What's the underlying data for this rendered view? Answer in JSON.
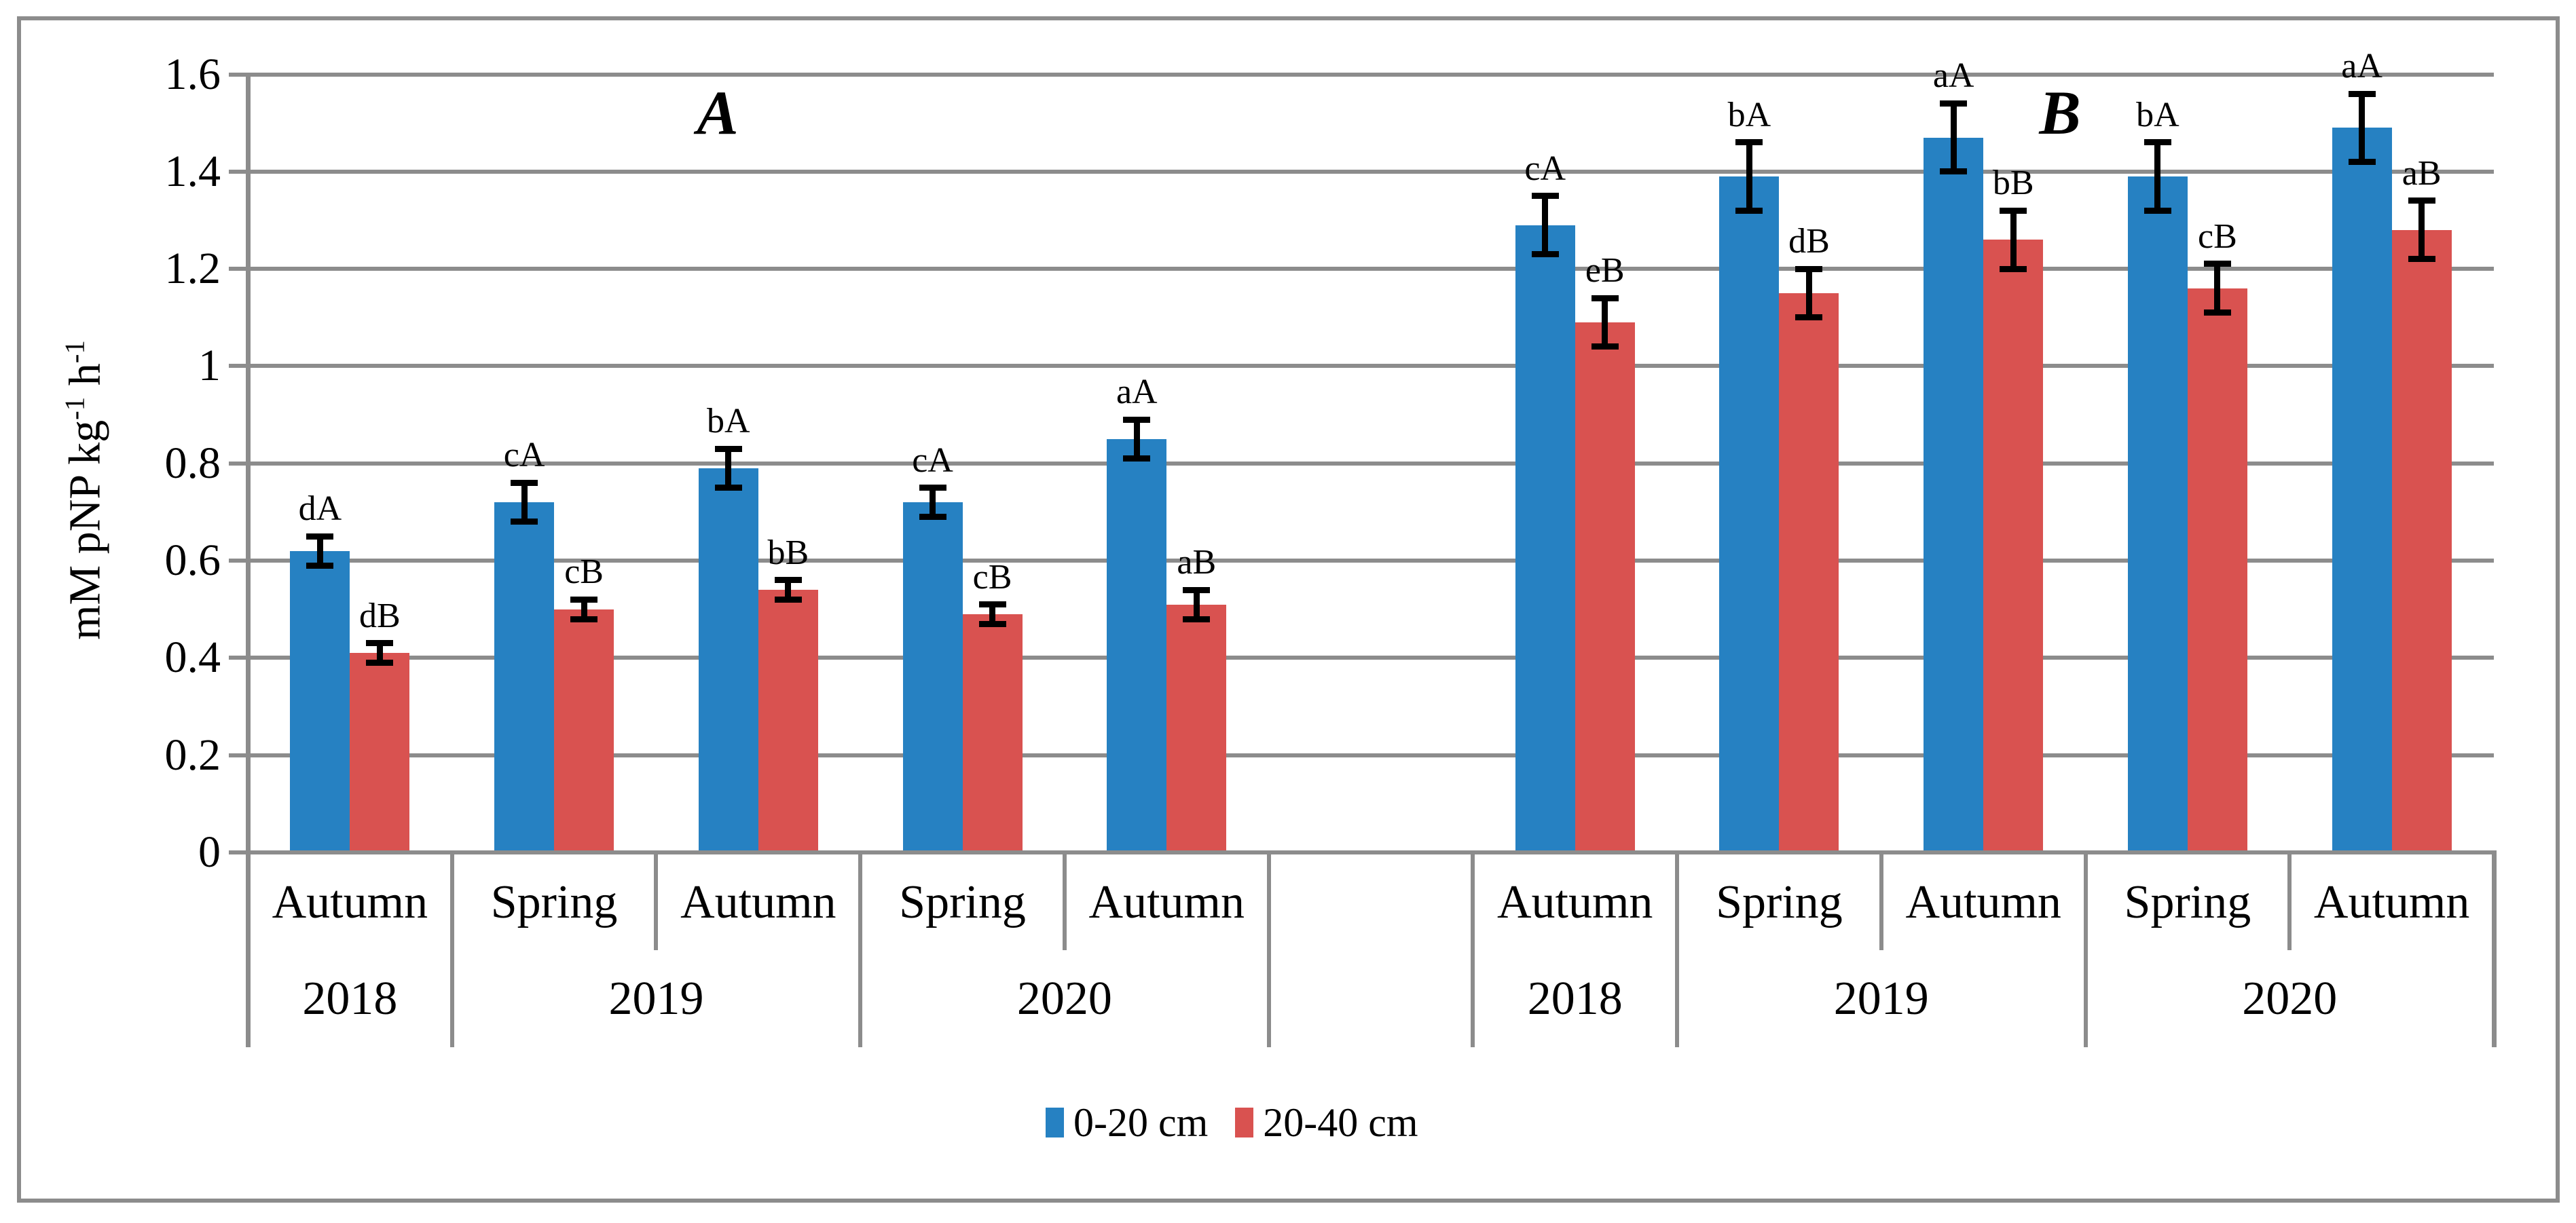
{
  "figure": {
    "background": "#FFFFFF",
    "panel_letters": [
      "A",
      "B"
    ],
    "y_axis_title_parts": [
      {
        "t": "mM pNP kg"
      },
      {
        "sup": "-1"
      },
      {
        "t": " h"
      },
      {
        "sup": "-1"
      }
    ],
    "legend": [
      {
        "label": "0-20 cm",
        "color": "#2681C2"
      },
      {
        "label": "20-40 cm",
        "color": "#D95250"
      }
    ],
    "colors": {
      "series_0_20": "#2681C2",
      "series_20_40": "#D95250",
      "gridline": "#8C8C8C",
      "axis": "#8C8C8C",
      "chart_border": "#8C8C8C",
      "error_bar": "#000000",
      "text": "#000000"
    }
  },
  "chart_data": {
    "type": "bar",
    "title": "",
    "ylabel": "mM pNP kg-1 h-1",
    "xlabel": "",
    "ylim": [
      0,
      1.6
    ],
    "ytick_step": 0.2,
    "grid": true,
    "legend_position": "bottom",
    "series_names": [
      "0-20 cm",
      "20-40 cm"
    ],
    "yticks": [
      {
        "value": 0,
        "label": "0"
      },
      {
        "value": 0.2,
        "label": "0.2"
      },
      {
        "value": 0.4,
        "label": "0.4"
      },
      {
        "value": 0.6,
        "label": "0.6"
      },
      {
        "value": 0.8,
        "label": "0.8"
      },
      {
        "value": 1,
        "label": "1"
      },
      {
        "value": 1.2,
        "label": "1.2"
      },
      {
        "value": 1.4,
        "label": "1.4"
      },
      {
        "value": 1.6,
        "label": "1.6"
      }
    ],
    "panels": [
      {
        "letter": "A",
        "groups": [
          {
            "year": "2018",
            "season": "Autumn",
            "bars": [
              {
                "series": "0-20 cm",
                "value": 0.62,
                "error": 0.03,
                "label": "dA"
              },
              {
                "series": "20-40 cm",
                "value": 0.41,
                "error": 0.02,
                "label": "dB"
              }
            ]
          },
          {
            "year": "2019",
            "season": "Spring",
            "bars": [
              {
                "series": "0-20 cm",
                "value": 0.72,
                "error": 0.04,
                "label": "cA"
              },
              {
                "series": "20-40 cm",
                "value": 0.5,
                "error": 0.02,
                "label": "cB"
              }
            ]
          },
          {
            "year": "2019",
            "season": "Autumn",
            "bars": [
              {
                "series": "0-20 cm",
                "value": 0.79,
                "error": 0.04,
                "label": "bA"
              },
              {
                "series": "20-40 cm",
                "value": 0.54,
                "error": 0.02,
                "label": "bB"
              }
            ]
          },
          {
            "year": "2020",
            "season": "Spring",
            "bars": [
              {
                "series": "0-20 cm",
                "value": 0.72,
                "error": 0.03,
                "label": "cA"
              },
              {
                "series": "20-40 cm",
                "value": 0.49,
                "error": 0.02,
                "label": "cB"
              }
            ]
          },
          {
            "year": "2020",
            "season": "Autumn",
            "bars": [
              {
                "series": "0-20 cm",
                "value": 0.85,
                "error": 0.04,
                "label": "aA"
              },
              {
                "series": "20-40 cm",
                "value": 0.51,
                "error": 0.03,
                "label": "aB"
              }
            ]
          }
        ]
      },
      {
        "letter": "B",
        "groups": [
          {
            "year": "2018",
            "season": "Autumn",
            "bars": [
              {
                "series": "0-20 cm",
                "value": 1.29,
                "error": 0.06,
                "label": "cA"
              },
              {
                "series": "20-40 cm",
                "value": 1.09,
                "error": 0.05,
                "label": "eB"
              }
            ]
          },
          {
            "year": "2019",
            "season": "Spring",
            "bars": [
              {
                "series": "0-20 cm",
                "value": 1.39,
                "error": 0.07,
                "label": "bA"
              },
              {
                "series": "20-40 cm",
                "value": 1.15,
                "error": 0.05,
                "label": "dB"
              }
            ]
          },
          {
            "year": "2019",
            "season": "Autumn",
            "bars": [
              {
                "series": "0-20 cm",
                "value": 1.47,
                "error": 0.07,
                "label": "aA"
              },
              {
                "series": "20-40 cm",
                "value": 1.26,
                "error": 0.06,
                "label": "bB"
              }
            ]
          },
          {
            "year": "2020",
            "season": "Spring",
            "bars": [
              {
                "series": "0-20 cm",
                "value": 1.39,
                "error": 0.07,
                "label": "bA"
              },
              {
                "series": "20-40 cm",
                "value": 1.16,
                "error": 0.05,
                "label": "cB"
              }
            ]
          },
          {
            "year": "2020",
            "season": "Autumn",
            "bars": [
              {
                "series": "0-20 cm",
                "value": 1.49,
                "error": 0.07,
                "label": "aA"
              },
              {
                "series": "20-40 cm",
                "value": 1.28,
                "error": 0.06,
                "label": "aB"
              }
            ]
          }
        ]
      }
    ]
  }
}
